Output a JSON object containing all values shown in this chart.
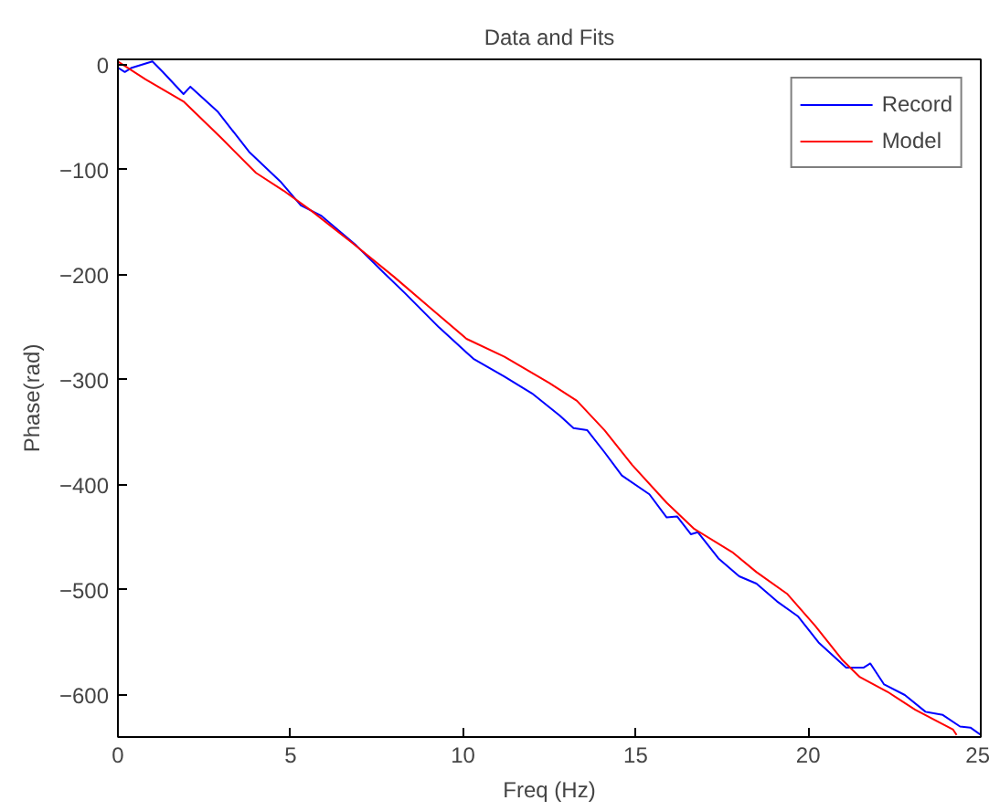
{
  "chart_data": {
    "type": "line",
    "title": "Data and Fits",
    "xlabel": "Freq (Hz)",
    "ylabel": "Phase(rad)",
    "xlim": [
      0,
      25
    ],
    "ylim": [
      -640,
      5
    ],
    "xticks": [
      0,
      5,
      10,
      15,
      20,
      25
    ],
    "yticks": [
      -600,
      -500,
      -400,
      -300,
      -200,
      -100,
      0
    ],
    "grid": false,
    "legend": "top right",
    "marker": "none",
    "line_style": "solid",
    "series": [
      {
        "name": "Record",
        "color": "#0000ff",
        "x": [
          0,
          0.2,
          0.4,
          1,
          1.3,
          1.9,
          2.1,
          2.9,
          3.8,
          4.7,
          5.3,
          5.9,
          6.9,
          7.7,
          8.3,
          9.3,
          10.3,
          11.2,
          12.0,
          12.8,
          13.2,
          13.6,
          14.1,
          14.6,
          15.4,
          15.9,
          16.2,
          16.6,
          16.8,
          17.4,
          18.0,
          18.5,
          19.1,
          19.7,
          20.3,
          21.1,
          21.6,
          21.8,
          22.2,
          22.8,
          23.4,
          23.9,
          24.4,
          24.7,
          25
        ],
        "values": [
          -3,
          -7,
          -3,
          3,
          -7,
          -28,
          -21,
          -45,
          -83,
          -111,
          -134,
          -144,
          -172,
          -198,
          -217,
          -250,
          -280,
          -297,
          -313,
          -334,
          -346,
          -348,
          -369,
          -391,
          -409,
          -431,
          -430,
          -447,
          -445,
          -470,
          -487,
          -494,
          -511,
          -525,
          -550,
          -574,
          -574,
          -570,
          -590,
          -600,
          -616,
          -619,
          -630,
          -631,
          -638
        ]
      },
      {
        "name": "Model",
        "color": "#ff0000",
        "x": [
          0,
          0.8,
          1.9,
          3.0,
          4.0,
          4.8,
          5.6,
          6.8,
          8.0,
          9.1,
          10.1,
          11.2,
          12.5,
          13.3,
          14.1,
          14.9,
          15.9,
          16.7,
          17.8,
          18.5,
          19.4,
          20.2,
          21.0,
          21.5,
          22.3,
          23.1,
          24.2,
          24.3
        ],
        "values": [
          3,
          -14,
          -35,
          -70,
          -103,
          -120,
          -139,
          -170,
          -202,
          -233,
          -261,
          -278,
          -303,
          -320,
          -348,
          -381,
          -417,
          -442,
          -464,
          -483,
          -504,
          -534,
          -567,
          -583,
          -597,
          -614,
          -633,
          -638
        ]
      }
    ]
  }
}
